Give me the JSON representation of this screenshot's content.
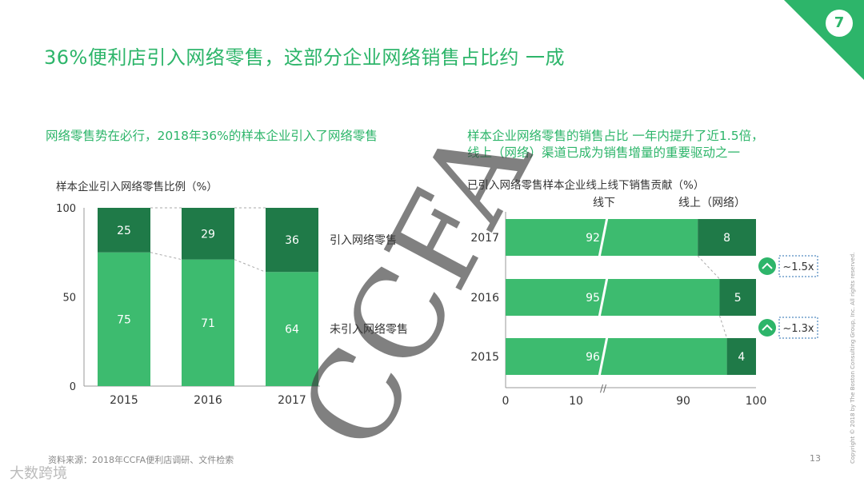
{
  "page_number": "7",
  "title": "36%便利店引入网络零售，这部分企业网络销售占比约 一成",
  "left": {
    "subhead": "网络零售势在必行，2018年36%的样本企业引入了网络零售",
    "chart_title": "样本企业引入网络零售比例（%）"
  },
  "right": {
    "subhead_line1": "样本企业网络零售的销售占比 一年内提升了近1.5倍，",
    "subhead_line2": "线上（网络）渠道已成为销售增量的重要驱动之一",
    "chart_title": "已引入网络零售样本企业线上线下销售贡献（%）"
  },
  "colors": {
    "accent": "#2db56a",
    "light_green": "#3dbb6f",
    "dark_green": "#1f7a48"
  },
  "chart_data": [
    {
      "type": "bar",
      "stacked": true,
      "title": "样本企业引入网络零售比例（%）",
      "categories": [
        "2015",
        "2016",
        "2017"
      ],
      "series": [
        {
          "name": "未引入网络零售",
          "values": [
            75,
            71,
            64
          ]
        },
        {
          "name": "引入网络零售",
          "values": [
            25,
            29,
            36
          ]
        }
      ],
      "ylim": [
        0,
        100
      ],
      "yticks": [
        0,
        50,
        100
      ]
    },
    {
      "type": "bar",
      "orientation": "horizontal",
      "stacked": true,
      "title": "已引入网络零售样本企业线上线下销售贡献（%）",
      "categories": [
        "2017",
        "2016",
        "2015"
      ],
      "series": [
        {
          "name": "线下",
          "values": [
            92,
            95,
            96
          ]
        },
        {
          "name": "线上（网络）",
          "values": [
            8,
            5,
            4
          ]
        }
      ],
      "xticks": [
        "0",
        "10",
        "90",
        "100"
      ],
      "axis_break": true,
      "annotations": [
        "~1.5x",
        "~1.3x"
      ]
    }
  ],
  "source": "资料来源：2018年CCFA便利店调研、文件检索",
  "footer_page": "13",
  "copyright": "Copyright © 2018 by The Boston Consulting Group, Inc. All rights reserved.",
  "watermark": "CCFA",
  "logo": "大数跨境"
}
